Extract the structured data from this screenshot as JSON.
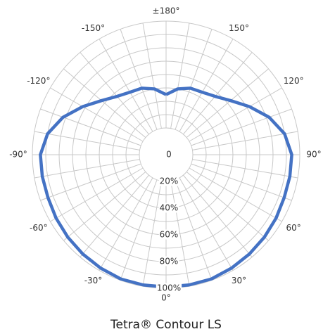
{
  "chart_data": {
    "type": "polar",
    "title": "Tetra® Contour LS",
    "theta": [
      -180,
      -170,
      -160,
      -150,
      -140,
      -130,
      -120,
      -110,
      -100,
      -90,
      -80,
      -70,
      -60,
      -50,
      -40,
      -30,
      -20,
      -10,
      0,
      10,
      20,
      30,
      40,
      50,
      60,
      70,
      80,
      90,
      100,
      110,
      120,
      130,
      140,
      150,
      160,
      170,
      180
    ],
    "values": [
      45,
      50,
      53,
      54,
      57,
      63,
      72,
      82,
      90,
      94,
      94,
      94,
      95,
      96,
      97,
      98,
      99,
      99,
      99,
      99,
      99,
      98,
      97,
      96,
      95,
      94,
      94,
      94,
      90,
      82,
      72,
      63,
      57,
      54,
      53,
      50,
      45
    ],
    "color": "#4472c4",
    "rlim": [
      0,
      100
    ],
    "rticks": [
      0,
      {
        "value": 20,
        "label": "20%"
      },
      {
        "value": 40,
        "label": "40%"
      },
      {
        "value": 60,
        "label": "60%"
      },
      {
        "value": 80,
        "label": "80%"
      },
      {
        "value": 100,
        "label": "100%"
      }
    ],
    "rgrid": [
      20,
      30,
      40,
      50,
      60,
      70,
      80,
      90,
      100
    ],
    "thetaticks": [
      {
        "value": 0,
        "label": "0°"
      },
      {
        "value": 30,
        "label": "30°"
      },
      {
        "value": 60,
        "label": "60°"
      },
      {
        "value": 90,
        "label": "90°"
      },
      {
        "value": 120,
        "label": "120°"
      },
      {
        "value": 150,
        "label": "150°"
      },
      {
        "value": 180,
        "label": "±180°"
      },
      {
        "value": -150,
        "label": "-150°"
      },
      {
        "value": -120,
        "label": "-120°"
      },
      {
        "value": -90,
        "label": "-90°"
      },
      {
        "value": -60,
        "label": "-60°"
      },
      {
        "value": -30,
        "label": "-30°"
      }
    ],
    "grid": true
  }
}
